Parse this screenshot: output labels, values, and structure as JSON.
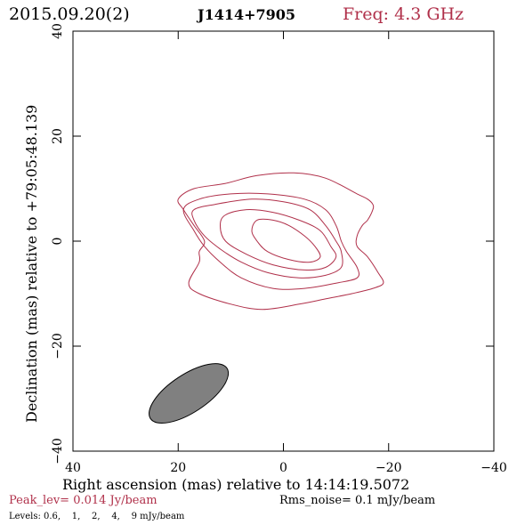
{
  "header": {
    "date": "2015.09.20(2)",
    "source": "J1414+7905",
    "freq": "Freq: 4.3 GHz"
  },
  "footer": {
    "peak": "Peak_lev=  0.014 Jy/beam",
    "rms": "Rms_noise=   0.1 mJy/beam",
    "levels": "Levels: 0.6,    1,    2,    4,    9 mJy/beam"
  },
  "colors": {
    "contour": "#b0304a",
    "freq": "#b0304a",
    "peak": "#b0304a",
    "beam_fill": "#808080",
    "text": "#000000"
  },
  "chart_data": {
    "type": "contour",
    "xlabel": "Right ascension (mas) relative to 14:14:19.5072",
    "ylabel": "Declination (mas) relative to +79:05:48.139",
    "xlim": [
      40,
      -40
    ],
    "ylim": [
      -40,
      40
    ],
    "xticks": [
      40,
      20,
      0,
      -20,
      -40
    ],
    "yticks": [
      -40,
      -20,
      0,
      20,
      40
    ],
    "xtick_labels": [
      "40",
      "20",
      "0",
      "−20",
      "−40"
    ],
    "ytick_labels": [
      "−40",
      "−20",
      "0",
      "20",
      "40"
    ],
    "contour_levels_mJy": [
      0.6,
      1,
      2,
      4,
      9
    ],
    "contours": [
      {
        "level": 0.6,
        "points": [
          [
            20,
            8
          ],
          [
            17,
            10
          ],
          [
            11,
            11
          ],
          [
            5,
            12.5
          ],
          [
            -2,
            13
          ],
          [
            -8,
            12
          ],
          [
            -14,
            9
          ],
          [
            -16,
            8
          ],
          [
            -17,
            7
          ],
          [
            -17,
            6
          ],
          [
            -16,
            4
          ],
          [
            -15,
            3
          ],
          [
            -14,
            1
          ],
          [
            -14,
            -1
          ],
          [
            -16,
            -3
          ],
          [
            -18,
            -6
          ],
          [
            -19,
            -8
          ],
          [
            -17,
            -9
          ],
          [
            -13,
            -10
          ],
          [
            -8,
            -11
          ],
          [
            -3,
            -12
          ],
          [
            4,
            -13
          ],
          [
            10,
            -12
          ],
          [
            16,
            -10
          ],
          [
            18,
            -8
          ],
          [
            16,
            -4
          ],
          [
            16,
            -2
          ],
          [
            15,
            0
          ],
          [
            17,
            3
          ],
          [
            19,
            6
          ]
        ]
      },
      {
        "level": 1,
        "points": [
          [
            19,
            6
          ],
          [
            16,
            8
          ],
          [
            10,
            9
          ],
          [
            3,
            9
          ],
          [
            -4,
            8
          ],
          [
            -8,
            6
          ],
          [
            -10,
            3
          ],
          [
            -11,
            0
          ],
          [
            -12,
            -2
          ],
          [
            -14,
            -5
          ],
          [
            -14,
            -7
          ],
          [
            -10,
            -8
          ],
          [
            -4,
            -9
          ],
          [
            2,
            -9
          ],
          [
            8,
            -7
          ],
          [
            12,
            -4
          ],
          [
            15,
            -1
          ],
          [
            17,
            2
          ]
        ]
      },
      {
        "level": 2,
        "points": [
          [
            17,
            6
          ],
          [
            13,
            7
          ],
          [
            6,
            8
          ],
          [
            0,
            7.5
          ],
          [
            -5,
            6
          ],
          [
            -8,
            3
          ],
          [
            -10,
            0
          ],
          [
            -11,
            -2
          ],
          [
            -11,
            -5
          ],
          [
            -8,
            -6.5
          ],
          [
            -3,
            -7
          ],
          [
            3,
            -6
          ],
          [
            8,
            -4
          ],
          [
            12,
            -1.5
          ],
          [
            15,
            1
          ],
          [
            17,
            4
          ]
        ]
      },
      {
        "level": 4,
        "points": [
          [
            11,
            5
          ],
          [
            7,
            6
          ],
          [
            2,
            5.5
          ],
          [
            -3,
            4
          ],
          [
            -7,
            2
          ],
          [
            -9,
            -1
          ],
          [
            -10,
            -3
          ],
          [
            -8,
            -5
          ],
          [
            -4,
            -5.5
          ],
          [
            2,
            -4.5
          ],
          [
            7,
            -2.5
          ],
          [
            11,
            0
          ],
          [
            12,
            3
          ]
        ]
      },
      {
        "level": 9,
        "points": [
          [
            5,
            4
          ],
          [
            2,
            4
          ],
          [
            -1,
            3
          ],
          [
            -4,
            1
          ],
          [
            -6,
            -1
          ],
          [
            -7,
            -3
          ],
          [
            -5,
            -4
          ],
          [
            -1,
            -3.5
          ],
          [
            3,
            -2
          ],
          [
            5,
            0
          ],
          [
            6,
            2
          ]
        ]
      }
    ],
    "beam": {
      "center": [
        18,
        -29
      ],
      "major_mas": 17.4,
      "minor_mas": 7.2,
      "position_angle_deg": 56.6
    }
  }
}
